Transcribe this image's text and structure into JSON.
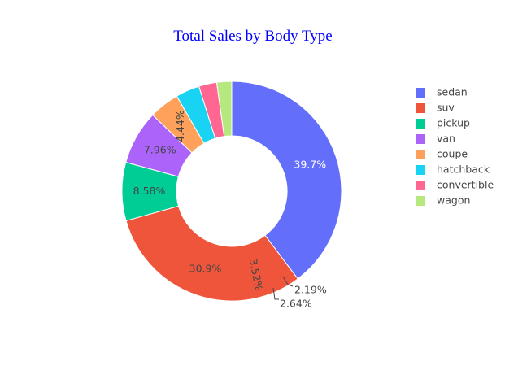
{
  "chart_data": {
    "type": "pie",
    "hole": true,
    "title": "Total Sales by Body Type",
    "legend_placement": "right",
    "slices": [
      {
        "label": "sedan",
        "value": 39.7,
        "text": "39.7%",
        "color": "#636efa",
        "text_color": "#ffffff"
      },
      {
        "label": "suv",
        "value": 30.9,
        "text": "30.9%",
        "color": "#ef553b",
        "text_color": "#444444"
      },
      {
        "label": "pickup",
        "value": 8.58,
        "text": "8.58%",
        "color": "#00cc96",
        "text_color": "#444444"
      },
      {
        "label": "van",
        "value": 7.96,
        "text": "7.96%",
        "color": "#ab63fa",
        "text_color": "#444444"
      },
      {
        "label": "coupe",
        "value": 4.44,
        "text": "4.44%",
        "color": "#ffa15a",
        "text_color": "#444444"
      },
      {
        "label": "hatchback",
        "value": 3.52,
        "text": "3.52%",
        "color": "#19d3f3",
        "text_color": "#444444"
      },
      {
        "label": "convertible",
        "value": 2.64,
        "text": "2.64%",
        "color": "#ff6692",
        "text_color": "#444444"
      },
      {
        "label": "wagon",
        "value": 2.19,
        "text": "2.19%",
        "color": "#b6e880",
        "text_color": "#444444"
      }
    ]
  }
}
